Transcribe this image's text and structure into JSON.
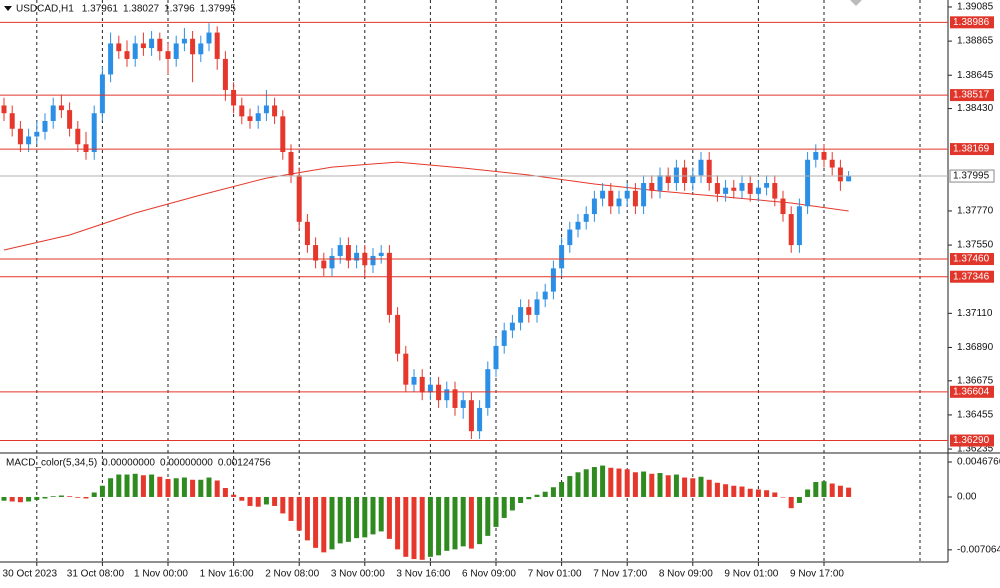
{
  "chart_data": {
    "type": "candlestick",
    "title": "USDCAD,H1",
    "up_color": "#2b8fe6",
    "down_color": "#e5372b",
    "level_color": "#e0352a",
    "ma_color": "#e5372b",
    "ylim": [
      1.36216,
      1.3913
    ],
    "yticks": [
      1.39085,
      1.38865,
      1.38645,
      {
        "value": 1.3843,
        "label": "1.38430"
      },
      {
        "value": 1.3777,
        "label": "1.37770"
      },
      {
        "value": 1.3755,
        "label": "1.37550"
      },
      {
        "value": 1.3711,
        "label": "1.37110"
      },
      {
        "value": 1.3689,
        "label": "1.36890"
      },
      1.36675,
      1.36455,
      1.36235
    ],
    "levels": [
      1.38986,
      1.38517,
      1.38169,
      {
        "value": 1.3746,
        "label": "1.37460"
      },
      1.37346,
      1.36604,
      {
        "value": 1.3629,
        "label": "1.36290"
      }
    ],
    "current_price": 1.37995,
    "x_labels": [
      "30 Oct 2023",
      "31 Oct 08:00",
      "1 Nov 00:00",
      "1 Nov 16:00",
      "2 Nov 08:00",
      "3 Nov 00:00",
      "3 Nov 16:00",
      "6 Nov 09:00",
      "7 Nov 01:00",
      "7 Nov 17:00",
      "8 Nov 09:00",
      "9 Nov 01:00",
      "9 Nov 17:00"
    ],
    "ohlc": [
      [
        1.3845,
        1.385,
        1.3835,
        1.384
      ],
      [
        1.384,
        1.3845,
        1.3825,
        1.383
      ],
      [
        1.383,
        1.3835,
        1.3815,
        1.382
      ],
      [
        1.382,
        1.383,
        1.3815,
        1.3825
      ],
      [
        1.3825,
        1.3835,
        1.382,
        1.3828
      ],
      [
        1.3828,
        1.384,
        1.3823,
        1.3835
      ],
      [
        1.3835,
        1.385,
        1.383,
        1.3845
      ],
      [
        1.3845,
        1.3852,
        1.3837,
        1.3842
      ],
      [
        1.3842,
        1.3847,
        1.3825,
        1.383
      ],
      [
        1.383,
        1.3835,
        1.3815,
        1.382
      ],
      [
        1.382,
        1.3828,
        1.381,
        1.3815
      ],
      [
        1.3815,
        1.3845,
        1.381,
        1.384
      ],
      [
        1.384,
        1.387,
        1.3835,
        1.3865
      ],
      [
        1.3865,
        1.3892,
        1.386,
        1.3885
      ],
      [
        1.3885,
        1.389,
        1.3875,
        1.388
      ],
      [
        1.388,
        1.3887,
        1.387,
        1.3875
      ],
      [
        1.3875,
        1.389,
        1.387,
        1.3885
      ],
      [
        1.3885,
        1.3892,
        1.3877,
        1.3882
      ],
      [
        1.3882,
        1.3893,
        1.3877,
        1.3888
      ],
      [
        1.3888,
        1.3892,
        1.3874,
        1.388
      ],
      [
        1.388,
        1.3885,
        1.3865,
        1.3875
      ],
      [
        1.3875,
        1.389,
        1.387,
        1.3885
      ],
      [
        1.3885,
        1.3895,
        1.388,
        1.3888
      ],
      [
        1.3888,
        1.3893,
        1.386,
        1.3878
      ],
      [
        1.3878,
        1.389,
        1.3873,
        1.3885
      ],
      [
        1.3885,
        1.3898,
        1.388,
        1.3892
      ],
      [
        1.3892,
        1.3896,
        1.3868,
        1.3875
      ],
      [
        1.3875,
        1.388,
        1.3848,
        1.3855
      ],
      [
        1.3855,
        1.386,
        1.384,
        1.3845
      ],
      [
        1.3845,
        1.385,
        1.3833,
        1.3838
      ],
      [
        1.3838,
        1.3843,
        1.383,
        1.3835
      ],
      [
        1.3835,
        1.3845,
        1.383,
        1.384
      ],
      [
        1.384,
        1.3855,
        1.3835,
        1.3845
      ],
      [
        1.3845,
        1.385,
        1.3833,
        1.3838
      ],
      [
        1.3838,
        1.3842,
        1.381,
        1.3815
      ],
      [
        1.3815,
        1.382,
        1.3795,
        1.38
      ],
      [
        1.38,
        1.3805,
        1.3765,
        1.377
      ],
      [
        1.377,
        1.3775,
        1.375,
        1.3755
      ],
      [
        1.3755,
        1.376,
        1.374,
        1.3745
      ],
      [
        1.3745,
        1.375,
        1.3735,
        1.374
      ],
      [
        1.374,
        1.3753,
        1.3735,
        1.3748
      ],
      [
        1.3748,
        1.376,
        1.3743,
        1.3755
      ],
      [
        1.3755,
        1.376,
        1.374,
        1.3745
      ],
      [
        1.3745,
        1.3755,
        1.374,
        1.375
      ],
      [
        1.375,
        1.3755,
        1.3735,
        1.3742
      ],
      [
        1.3742,
        1.3753,
        1.3737,
        1.3748
      ],
      [
        1.3748,
        1.3755,
        1.3743,
        1.375
      ],
      [
        1.375,
        1.3755,
        1.3705,
        1.371
      ],
      [
        1.371,
        1.3715,
        1.368,
        1.3685
      ],
      [
        1.3685,
        1.369,
        1.366,
        1.3665
      ],
      [
        1.3665,
        1.3675,
        1.366,
        1.367
      ],
      [
        1.367,
        1.3675,
        1.3655,
        1.366
      ],
      [
        1.366,
        1.367,
        1.3655,
        1.3665
      ],
      [
        1.3665,
        1.367,
        1.365,
        1.3655
      ],
      [
        1.3655,
        1.3667,
        1.365,
        1.3662
      ],
      [
        1.3662,
        1.3667,
        1.3645,
        1.365
      ],
      [
        1.365,
        1.366,
        1.3643,
        1.3655
      ],
      [
        1.3655,
        1.366,
        1.363,
        1.3635
      ],
      [
        1.3635,
        1.3655,
        1.363,
        1.365
      ],
      [
        1.365,
        1.368,
        1.3645,
        1.3675
      ],
      [
        1.3675,
        1.3695,
        1.367,
        1.369
      ],
      [
        1.369,
        1.3705,
        1.3685,
        1.37
      ],
      [
        1.37,
        1.371,
        1.3695,
        1.3705
      ],
      [
        1.3705,
        1.372,
        1.37,
        1.3715
      ],
      [
        1.3715,
        1.372,
        1.3705,
        1.371
      ],
      [
        1.371,
        1.3725,
        1.3705,
        1.372
      ],
      [
        1.372,
        1.373,
        1.3715,
        1.3725
      ],
      [
        1.3725,
        1.3745,
        1.372,
        1.374
      ],
      [
        1.374,
        1.376,
        1.3735,
        1.3755
      ],
      [
        1.3755,
        1.377,
        1.375,
        1.3765
      ],
      [
        1.3765,
        1.3775,
        1.376,
        1.377
      ],
      [
        1.377,
        1.378,
        1.3765,
        1.3775
      ],
      [
        1.3775,
        1.379,
        1.377,
        1.3785
      ],
      [
        1.3785,
        1.3795,
        1.378,
        1.379
      ],
      [
        1.379,
        1.3795,
        1.3775,
        1.378
      ],
      [
        1.378,
        1.379,
        1.3775,
        1.3785
      ],
      [
        1.3785,
        1.3795,
        1.378,
        1.379
      ],
      [
        1.379,
        1.3795,
        1.3775,
        1.378
      ],
      [
        1.378,
        1.38,
        1.3775,
        1.3795
      ],
      [
        1.3795,
        1.38,
        1.3785,
        1.379
      ],
      [
        1.379,
        1.3805,
        1.3785,
        1.38
      ],
      [
        1.38,
        1.3805,
        1.379,
        1.3795
      ],
      [
        1.3795,
        1.381,
        1.379,
        1.3805
      ],
      [
        1.3805,
        1.381,
        1.379,
        1.3795
      ],
      [
        1.3795,
        1.3805,
        1.379,
        1.38
      ],
      [
        1.38,
        1.3815,
        1.3795,
        1.381
      ],
      [
        1.381,
        1.3815,
        1.379,
        1.3795
      ],
      [
        1.3795,
        1.38,
        1.3783,
        1.3788
      ],
      [
        1.3788,
        1.3797,
        1.3783,
        1.3792
      ],
      [
        1.3792,
        1.3797,
        1.3785,
        1.379
      ],
      [
        1.379,
        1.38,
        1.3785,
        1.3795
      ],
      [
        1.3795,
        1.38,
        1.3783,
        1.3788
      ],
      [
        1.3788,
        1.3797,
        1.3783,
        1.3792
      ],
      [
        1.3792,
        1.38,
        1.3787,
        1.3795
      ],
      [
        1.3795,
        1.38,
        1.378,
        1.3785
      ],
      [
        1.3785,
        1.379,
        1.377,
        1.3775
      ],
      [
        1.3775,
        1.378,
        1.375,
        1.3755
      ],
      [
        1.3755,
        1.3785,
        1.375,
        1.378
      ],
      [
        1.378,
        1.3815,
        1.3775,
        1.381
      ],
      [
        1.381,
        1.382,
        1.3805,
        1.3815
      ],
      [
        1.3815,
        1.382,
        1.3805,
        1.381
      ],
      [
        1.381,
        1.3815,
        1.38,
        1.3805
      ],
      [
        1.3805,
        1.381,
        1.379,
        1.37961
      ],
      [
        1.37961,
        1.38027,
        1.3796,
        1.37995
      ]
    ],
    "ma": {
      "index": [
        0,
        8,
        16,
        24,
        32,
        40,
        48,
        56,
        64,
        72,
        80,
        88,
        96,
        103
      ],
      "values": [
        1.37518,
        1.37615,
        1.37757,
        1.37873,
        1.37982,
        1.38053,
        1.38085,
        1.38047,
        1.38002,
        1.37944,
        1.37898,
        1.3786,
        1.37821,
        1.3777
      ]
    },
    "macd": {
      "type": "bar",
      "title": "MACD_color(5,34,5)",
      "readouts": [
        {
          "value": 0,
          "label": "0.00000000"
        },
        {
          "value": 0,
          "label": "0.00000000"
        }
      ],
      "up_color": "#2f8a1f",
      "down_color": "#e5372b",
      "ylim": [
        -0.00869,
        0.00561
      ],
      "yticks": [
        0.0046766,
        {
          "value": 0,
          "label": "0.00"
        },
        {
          "value": -0.007064,
          "label": "-0.0070640"
        }
      ],
      "values": [
        -0.0005,
        -0.0006,
        -0.0007,
        -0.0006,
        -0.0004,
        -0.0002,
        0.0001,
        0.0002,
        0.0001,
        -0.0001,
        -0.0002,
        0.0006,
        0.0015,
        0.0025,
        0.003,
        0.003,
        0.0031,
        0.0029,
        0.003,
        0.0027,
        0.0024,
        0.0025,
        0.0026,
        0.0023,
        0.0023,
        0.0026,
        0.0022,
        0.0012,
        0.0003,
        -0.0005,
        -0.0012,
        -0.0013,
        -0.001,
        -0.0012,
        -0.0022,
        -0.0032,
        -0.0045,
        -0.0058,
        -0.0068,
        -0.0074,
        -0.007,
        -0.0062,
        -0.006,
        -0.0055,
        -0.0054,
        -0.005,
        -0.0046,
        -0.0056,
        -0.007,
        -0.008,
        -0.0083,
        -0.0084,
        -0.008,
        -0.0078,
        -0.0072,
        -0.007,
        -0.0066,
        -0.0069,
        -0.0063,
        -0.0052,
        -0.004,
        -0.0028,
        -0.0018,
        -0.0008,
        -0.0003,
        0.0003,
        0.0007,
        0.0013,
        0.002,
        0.0028,
        0.0033,
        0.0037,
        0.004,
        0.0042,
        0.0039,
        0.0038,
        0.0037,
        0.0033,
        0.0034,
        0.0031,
        0.0032,
        0.0029,
        0.003,
        0.0026,
        0.0025,
        0.0027,
        0.0023,
        0.0019,
        0.0017,
        0.0015,
        0.0014,
        0.0011,
        0.001,
        0.0009,
        0.0006,
        0,
        -0.0015,
        -0.0008,
        0.001,
        0.002,
        0.0021,
        0.0018,
        0.0015,
        0.00124756
      ]
    }
  }
}
